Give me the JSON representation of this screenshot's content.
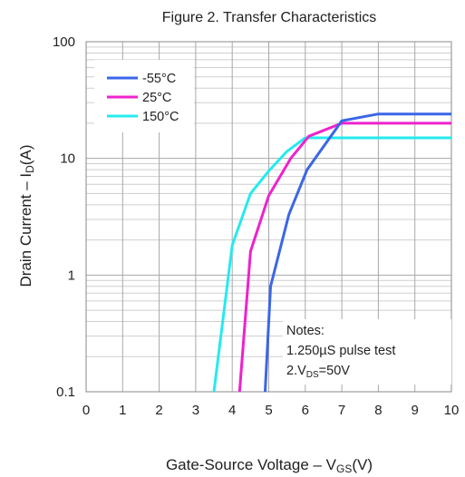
{
  "chart_data": {
    "type": "line",
    "title": "Figure 2. Transfer Characteristics",
    "xlabel": {
      "main": "Gate-Source Voltage – V",
      "sub": "GS",
      "suffix": "(V)"
    },
    "ylabel": {
      "main": "Drain Current – I",
      "sub": "D",
      "suffix": "(A)"
    },
    "xlim": [
      0,
      10
    ],
    "ylim": [
      0.1,
      100
    ],
    "yscale": "log",
    "grid": true,
    "legend_position": "top-left",
    "x_ticks": [
      "0",
      "1",
      "2",
      "3",
      "4",
      "5",
      "6",
      "7",
      "8",
      "9",
      "10"
    ],
    "y_ticks": [
      {
        "value": 0.1,
        "label": "0.1"
      },
      {
        "value": 1,
        "label": "1"
      },
      {
        "value": 10,
        "label": "10"
      },
      {
        "value": 100,
        "label": "100"
      }
    ],
    "series": [
      {
        "name": "-55°C",
        "color": "#3a66e8",
        "x": [
          4.9,
          5.05,
          5.55,
          6.05,
          7.0,
          8.0,
          10.0
        ],
        "y": [
          0.1,
          0.8,
          3.3,
          8.0,
          21.0,
          24.0,
          24.0
        ]
      },
      {
        "name": "25°C",
        "color": "#ee22cc",
        "x": [
          4.2,
          4.5,
          5.0,
          5.6,
          6.1,
          7.0,
          10.0
        ],
        "y": [
          0.1,
          1.6,
          4.8,
          10.0,
          15.5,
          20.0,
          20.0
        ]
      },
      {
        "name": "150°C",
        "color": "#25eaee",
        "x": [
          3.5,
          4.0,
          4.5,
          5.0,
          5.5,
          6.0,
          10.0
        ],
        "y": [
          0.1,
          1.8,
          5.0,
          7.8,
          11.5,
          15.0,
          15.0
        ]
      }
    ],
    "notes": {
      "heading": "Notes:",
      "line1": "1.250µS pulse test",
      "line2": {
        "prefix": "2.V",
        "sub": "DS",
        "suffix": "=50V"
      }
    }
  }
}
